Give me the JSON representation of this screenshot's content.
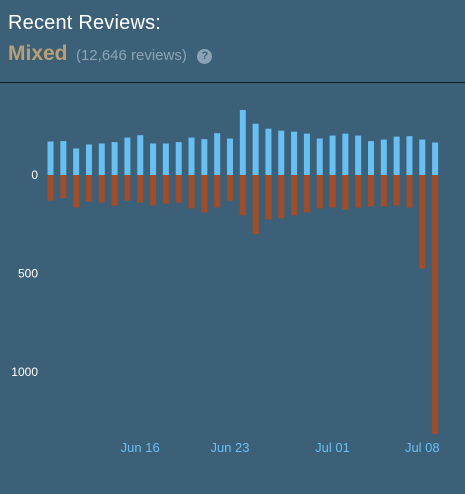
{
  "header": {
    "title": "Recent Reviews:",
    "rating": "Mixed",
    "count": "(12,646 reviews)",
    "help_icon": "help-circle-icon"
  },
  "colors": {
    "background": "#3c6078",
    "positive": "#66c0f4",
    "negative": "#a34c25",
    "rating": "#b9a074"
  },
  "chart_data": {
    "type": "bar",
    "title": "",
    "xlabel": "",
    "ylabel": "",
    "y_ticks": [
      {
        "label": "0",
        "value": 0
      },
      {
        "label": "500",
        "value": 500
      },
      {
        "label": "1000",
        "value": 1000
      }
    ],
    "x_ticks": [
      {
        "label": "Jun 16",
        "index": 7
      },
      {
        "label": "Jun 23",
        "index": 14
      },
      {
        "label": "Jul 01",
        "index": 22
      },
      {
        "label": "Jul 08",
        "index": 29
      }
    ],
    "grid": false,
    "legend": "none",
    "series": [
      {
        "values": [
          170,
          172,
          135,
          155,
          160,
          167,
          190,
          202,
          160,
          160,
          167,
          190,
          182,
          212,
          185,
          330,
          260,
          235,
          225,
          220,
          210,
          185,
          200,
          210,
          200,
          172,
          180,
          195,
          197,
          180,
          165
        ]
      },
      {
        "values": [
          -130,
          -118,
          -165,
          -135,
          -140,
          -155,
          -130,
          -140,
          -155,
          -145,
          -140,
          -170,
          -190,
          -165,
          -130,
          -205,
          -300,
          -225,
          -220,
          -205,
          -190,
          -170,
          -165,
          -175,
          -165,
          -160,
          -160,
          -155,
          -165,
          -475,
          -1315
        ]
      }
    ]
  }
}
